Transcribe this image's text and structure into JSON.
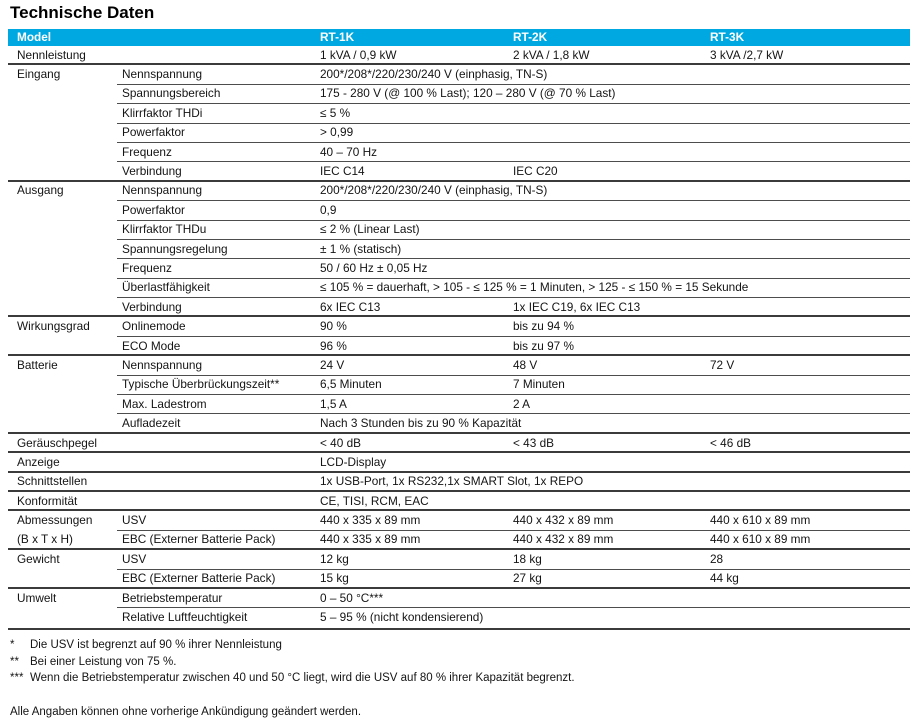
{
  "title": "Technische Daten",
  "colors": {
    "header_bg": "#00A8E1",
    "header_text": "#FFFFFF",
    "section_line": "#3b3b3b",
    "sub_line": "#4d4d4d"
  },
  "table": {
    "header": [
      "Model",
      "RT-1K",
      "RT-2K",
      "RT-3K"
    ],
    "rows": [
      {
        "sec": "Nennleistung",
        "v1": "1 kVA / 0,9 kW",
        "v2": "2 kVA / 1,8 kW",
        "v3": "3 kVA /2,7 kW",
        "sep": "none"
      },
      {
        "sec": "Eingang",
        "sub": "Nennspannung",
        "v1": "200*/208*/220/230/240 V (einphasig, TN-S)",
        "sep": "full"
      },
      {
        "sub": "Spannungsbereich",
        "v1": "175 - 280 V (@ 100 % Last); 120 – 280 V (@ 70 % Last)",
        "sep": "sub"
      },
      {
        "sub": "Klirrfaktor THDi",
        "v1": "≤ 5 %",
        "sep": "sub"
      },
      {
        "sub": "Powerfaktor",
        "v1": "> 0,99",
        "sep": "sub"
      },
      {
        "sub": "Frequenz",
        "v1": "40 – 70 Hz",
        "sep": "sub"
      },
      {
        "sub": "Verbindung",
        "v1": "IEC C14",
        "v2": "IEC C20",
        "sep": "sub"
      },
      {
        "sec": "Ausgang",
        "sub": "Nennspannung",
        "v1": "200*/208*/220/230/240 V (einphasig, TN-S)",
        "sep": "full"
      },
      {
        "sub": "Powerfaktor",
        "v1": "0,9",
        "sep": "sub"
      },
      {
        "sub": "Klirrfaktor THDu",
        "v1": "≤ 2 % (Linear Last)",
        "sep": "sub"
      },
      {
        "sub": "Spannungsregelung",
        "v1": "± 1 % (statisch)",
        "sep": "sub"
      },
      {
        "sub": "Frequenz",
        "v1": "50 / 60 Hz ± 0,05 Hz",
        "sep": "sub"
      },
      {
        "sub": "Überlastfähigkeit",
        "v1": "≤ 105 % = dauerhaft, > 105 - ≤ 125 % = 1 Minuten, > 125 - ≤ 150 % = 15 Sekunde",
        "sep": "sub"
      },
      {
        "sub": "Verbindung",
        "v1": "6x IEC C13",
        "v2": "1x IEC C19, 6x IEC C13",
        "sep": "sub"
      },
      {
        "sec": "Wirkungsgrad",
        "sub": "Onlinemode",
        "v1": "90 %",
        "v2": "bis zu 94 %",
        "sep": "full"
      },
      {
        "sub": "ECO Mode",
        "v1": "96 %",
        "v2": "bis zu 97 %",
        "sep": "sub"
      },
      {
        "sec": "Batterie",
        "sub": "Nennspannung",
        "v1": "24 V",
        "v2": "48 V",
        "v3": "72 V",
        "sep": "full"
      },
      {
        "sub": "Typische Überbrückungszeit**",
        "v1": "6,5 Minuten",
        "v2": "7 Minuten",
        "sep": "sub"
      },
      {
        "sub": "Max. Ladestrom",
        "v1": "1,5 A",
        "v2": "2 A",
        "sep": "sub"
      },
      {
        "sub": "Aufladezeit",
        "v1": "Nach 3 Stunden bis zu 90 % Kapazität",
        "sep": "sub"
      },
      {
        "sec": "Geräuschpegel",
        "v1": "< 40 dB",
        "v2": "< 43 dB",
        "v3": "< 46 dB",
        "sep": "full"
      },
      {
        "sec": "Anzeige",
        "v1": "LCD-Display",
        "sep": "full"
      },
      {
        "sec": "Schnittstellen",
        "v1": "1x USB-Port, 1x RS232,1x SMART Slot, 1x REPO",
        "sep": "full"
      },
      {
        "sec": "Konformität",
        "v1": "CE, TISI, RCM, EAC",
        "sep": "full"
      },
      {
        "sec": "Abmessungen",
        "sub": "USV",
        "v1": "440 x 335 x 89 mm",
        "v2": "440 x 432 x 89 mm",
        "v3": "440 x 610 x 89 mm",
        "sep": "full"
      },
      {
        "sec": "(B x T x H)",
        "sub": "EBC (Externer Batterie Pack)",
        "v1": "440 x 335 x 89 mm",
        "v2": "440 x 432 x 89 mm",
        "v3": "440 x 610 x 89 mm",
        "sep": "sub"
      },
      {
        "sec": "Gewicht",
        "sub": "USV",
        "v1": "12 kg",
        "v2": "18 kg",
        "v3": "28",
        "sep": "full"
      },
      {
        "sub": "EBC (Externer Batterie Pack)",
        "v1": "15 kg",
        "v2": "27 kg",
        "v3": "44 kg",
        "sep": "sub"
      },
      {
        "sec": "Umwelt",
        "sub": "Betriebstemperatur",
        "v1": "0 – 50 °C***",
        "sep": "full"
      },
      {
        "sub": "Relative Luftfeuchtigkeit",
        "v1": "5 – 95 % (nicht kondensierend)",
        "sep": "sub"
      }
    ]
  },
  "footnotes": [
    {
      "marker": "*",
      "text": "Die USV ist begrenzt auf 90 % ihrer Nennleistung"
    },
    {
      "marker": "**",
      "text": "Bei einer Leistung von 75 %."
    },
    {
      "marker": "***",
      "text": "Wenn die Betriebstemperatur zwischen 40 und 50 °C liegt, wird die USV auf 80 % ihrer Kapazität begrenzt."
    }
  ],
  "disclaimer": "Alle Angaben können ohne vorherige Ankündigung geändert werden."
}
